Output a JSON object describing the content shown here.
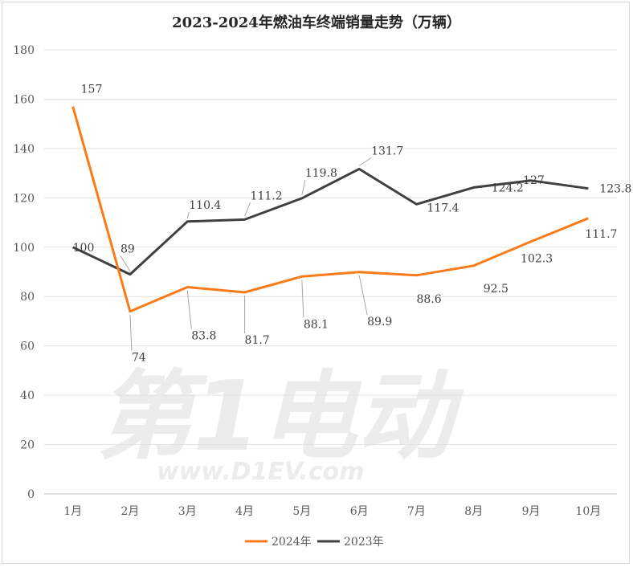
{
  "chart_data": {
    "type": "line",
    "title": "2023-2024年燃油车终端销量走势（万辆）",
    "categories": [
      "1月",
      "2月",
      "3月",
      "4月",
      "5月",
      "6月",
      "7月",
      "8月",
      "9月",
      "10月"
    ],
    "ylim": [
      0,
      180
    ],
    "yticks": [
      0,
      20,
      40,
      60,
      80,
      100,
      120,
      140,
      160,
      180
    ],
    "grid": true,
    "legend_position": "bottom",
    "series": [
      {
        "name": "2024年",
        "color": "#fa7b17",
        "values": [
          157,
          74,
          83.8,
          81.7,
          88.1,
          89.9,
          88.6,
          92.5,
          102.3,
          111.7
        ],
        "labels": [
          "157",
          "74",
          "83.8",
          "81.7",
          "88.1",
          "89.9",
          "88.6",
          "92.5",
          "102.3",
          "111.7"
        ]
      },
      {
        "name": "2023年",
        "color": "#404040",
        "values": [
          100,
          89,
          110.4,
          111.2,
          119.8,
          131.7,
          117.4,
          124.2,
          127,
          123.8
        ],
        "labels": [
          "100",
          "89",
          "110.4",
          "111.2",
          "119.8",
          "131.7",
          "117.4",
          "124.2",
          "127",
          "123.8"
        ]
      }
    ]
  },
  "watermark": {
    "brand": "第1电动",
    "url": "www.D1EV.com"
  }
}
